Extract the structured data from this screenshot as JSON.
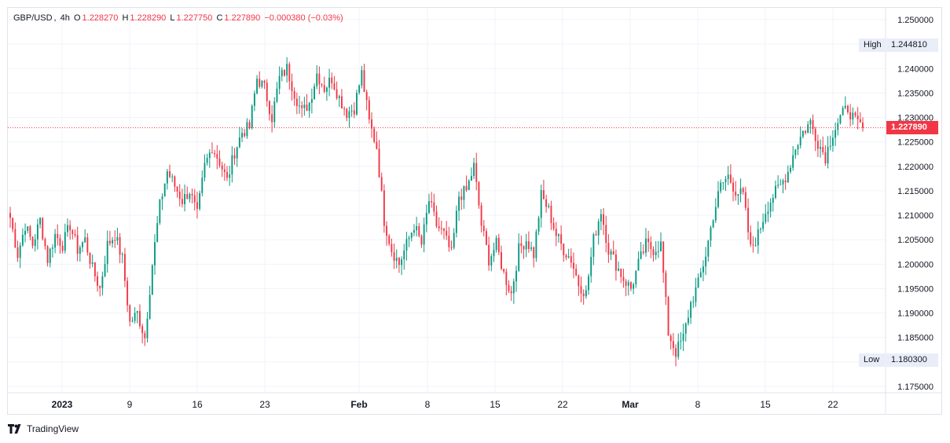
{
  "symbol": {
    "pair": "GBP/USD",
    "separator": ",",
    "interval": "4h",
    "open_label": "O",
    "open": "1.228270",
    "high_label": "H",
    "high": "1.228290",
    "low_label": "L",
    "low": "1.227750",
    "close_label": "C",
    "close": "1.227890",
    "change": "−0.000380 (−0.03%)"
  },
  "markers": {
    "high_label": "High",
    "high_value": "1.244810",
    "low_label": "Low",
    "low_value": "1.180300",
    "last_price": "1.227890"
  },
  "colors": {
    "up": "#089981",
    "down": "#f23645",
    "grid": "#f0f3fa",
    "axis_text": "#131722",
    "last_price": "#f23645"
  },
  "brand": "TradingView",
  "chart_data": {
    "type": "candlestick",
    "title": "",
    "ylim": [
      1.175,
      1.25
    ],
    "y_ticks": [
      "1.250000",
      "1.245000",
      "1.240000",
      "1.235000",
      "1.230000",
      "1.225000",
      "1.220000",
      "1.215000",
      "1.210000",
      "1.205000",
      "1.200000",
      "1.195000",
      "1.190000",
      "1.185000",
      "1.180000",
      "1.175000"
    ],
    "x_ticks": [
      "2023",
      "9",
      "16",
      "23",
      "Feb",
      "8",
      "15",
      "22",
      "Mar",
      "8",
      "15",
      "22"
    ],
    "period_high": 1.24481,
    "period_low": 1.1803,
    "last_close": 1.22789,
    "anchors": [
      1.2095,
      1.202,
      1.208,
      1.204,
      1.209,
      1.201,
      1.206,
      1.204,
      1.208,
      1.203,
      1.205,
      1.199,
      1.195,
      1.204,
      1.206,
      1.201,
      1.188,
      1.19,
      1.185,
      1.2,
      1.212,
      1.219,
      1.216,
      1.213,
      1.215,
      1.21,
      1.22,
      1.224,
      1.221,
      1.217,
      1.223,
      1.227,
      1.228,
      1.238,
      1.236,
      1.23,
      1.238,
      1.24,
      1.235,
      1.231,
      1.233,
      1.239,
      1.236,
      1.238,
      1.234,
      1.231,
      1.232,
      1.239,
      1.229,
      1.224,
      1.209,
      1.203,
      1.2,
      1.204,
      1.208,
      1.204,
      1.213,
      1.208,
      1.206,
      1.202,
      1.214,
      1.215,
      1.22,
      1.208,
      1.201,
      1.204,
      1.198,
      1.194,
      1.203,
      1.205,
      1.202,
      1.214,
      1.211,
      1.206,
      1.203,
      1.201,
      1.196,
      1.194,
      1.205,
      1.211,
      1.203,
      1.2,
      1.197,
      1.195,
      1.2,
      1.204,
      1.203,
      1.204,
      1.186,
      1.182,
      1.185,
      1.192,
      1.196,
      1.202,
      1.21,
      1.216,
      1.218,
      1.215,
      1.214,
      1.203,
      1.206,
      1.211,
      1.214,
      1.216,
      1.219,
      1.224,
      1.227,
      1.229,
      1.225,
      1.222,
      1.227,
      1.23,
      1.232,
      1.229,
      1.2279
    ]
  }
}
